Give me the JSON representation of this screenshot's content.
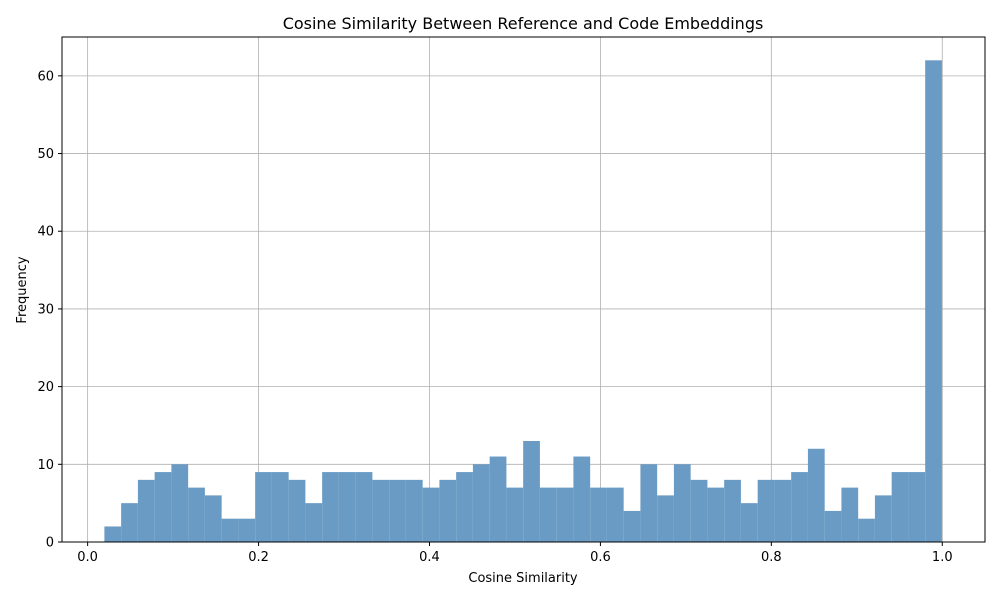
{
  "chart_data": {
    "type": "bar",
    "title": "Cosine Similarity Between Reference and Code Embeddings",
    "xlabel": "Cosine Similarity",
    "ylabel": "Frequency",
    "xlim": [
      -0.03,
      1.05
    ],
    "ylim": [
      0,
      65
    ],
    "xticks": [
      0.0,
      0.2,
      0.4,
      0.6,
      0.8,
      1.0
    ],
    "xtick_labels": [
      "0.0",
      "0.2",
      "0.4",
      "0.6",
      "0.8",
      "1.0"
    ],
    "yticks": [
      0,
      10,
      20,
      30,
      40,
      50,
      60
    ],
    "ytick_labels": [
      "0",
      "10",
      "20",
      "30",
      "40",
      "50",
      "60"
    ],
    "grid": true,
    "bar_color": "#6a9bc4",
    "bin_edges": [
      0.0196,
      0.0392,
      0.0588,
      0.0784,
      0.098,
      0.1176,
      0.1372,
      0.1568,
      0.1764,
      0.196,
      0.2156,
      0.2352,
      0.2548,
      0.2744,
      0.294,
      0.3136,
      0.3332,
      0.3528,
      0.3724,
      0.392,
      0.4116,
      0.4312,
      0.4508,
      0.4704,
      0.49,
      0.5096,
      0.5292,
      0.5488,
      0.5684,
      0.588,
      0.6076,
      0.6272,
      0.6468,
      0.6664,
      0.686,
      0.7056,
      0.7252,
      0.7448,
      0.7644,
      0.784,
      0.8036,
      0.8232,
      0.8428,
      0.8624,
      0.882,
      0.9016,
      0.9212,
      0.9408,
      0.9604,
      0.98,
      0.9996
    ],
    "values": [
      2,
      5,
      8,
      9,
      10,
      7,
      6,
      3,
      3,
      9,
      9,
      8,
      5,
      9,
      9,
      9,
      8,
      8,
      8,
      7,
      8,
      9,
      10,
      11,
      7,
      13,
      7,
      7,
      11,
      7,
      7,
      4,
      10,
      6,
      10,
      8,
      7,
      8,
      5,
      8,
      8,
      9,
      12,
      4,
      7,
      3,
      6,
      9,
      9,
      62
    ]
  }
}
